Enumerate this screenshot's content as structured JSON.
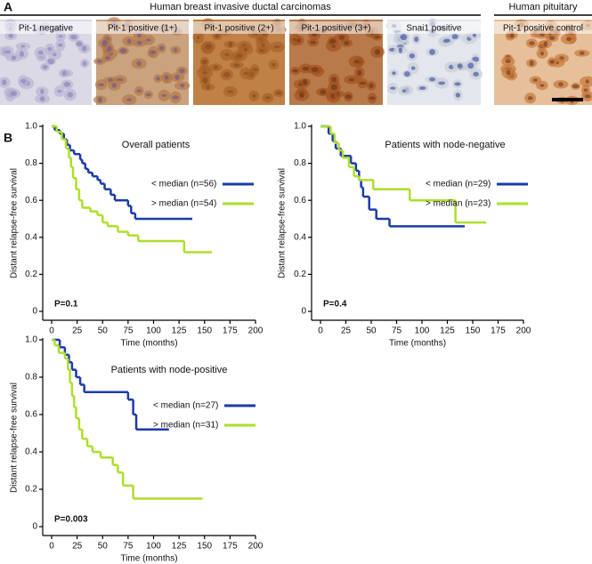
{
  "panel_a": {
    "label": "A",
    "groups": [
      {
        "title": "Human breast invasive ductal carcinomas"
      },
      {
        "title": "Human pituitary"
      }
    ],
    "images": [
      {
        "caption": "Pit-1 negative"
      },
      {
        "caption": "Pit-1 positive (1+)"
      },
      {
        "caption": "Pit-1 positive (2+)"
      },
      {
        "caption": "Pit-1 positive (3+)"
      },
      {
        "caption": "Snai1 positive"
      },
      {
        "caption": "Pit-1 positive control"
      }
    ]
  },
  "panel_b": {
    "label": "B"
  },
  "chart_data": [
    {
      "type": "line",
      "step": true,
      "title": "Overall patients",
      "annotation": "P=0.1",
      "x_label": "Time (months)",
      "y_label": "Distant relapse-free survival",
      "legend": "upper right",
      "xlim": [
        0,
        200
      ],
      "xticks": [
        0,
        25,
        50,
        75,
        100,
        125,
        150,
        175,
        200
      ],
      "ylim": [
        0,
        1
      ],
      "yticks": [
        0,
        0.2,
        0.4,
        0.6,
        0.8,
        {
          "value": 1,
          "label": "1.0"
        }
      ],
      "series": [
        {
          "name": "< median (n=56)",
          "color": "#1c3aa9",
          "x": [
            0,
            3,
            8,
            12,
            15,
            18,
            22,
            28,
            30,
            33,
            36,
            40,
            45,
            48,
            52,
            58,
            62,
            75,
            78,
            82,
            138
          ],
          "values": [
            1,
            0.98,
            0.96,
            0.93,
            0.9,
            0.87,
            0.85,
            0.82,
            0.8,
            0.77,
            0.75,
            0.73,
            0.71,
            0.69,
            0.66,
            0.63,
            0.6,
            0.57,
            0.53,
            0.5,
            0.5
          ]
        },
        {
          "name": "> median (n=54)",
          "color": "#addf2b",
          "x": [
            0,
            5,
            10,
            14,
            17,
            19,
            21,
            24,
            27,
            30,
            38,
            45,
            50,
            55,
            65,
            75,
            85,
            130,
            157
          ],
          "values": [
            1,
            0.97,
            0.93,
            0.88,
            0.83,
            0.78,
            0.72,
            0.66,
            0.6,
            0.56,
            0.54,
            0.52,
            0.48,
            0.46,
            0.43,
            0.41,
            0.38,
            0.32,
            0.32
          ]
        }
      ]
    },
    {
      "type": "line",
      "step": true,
      "title": "Patients with node-negative",
      "annotation": "P=0.4",
      "x_label": "Time (months)",
      "y_label": "Distant relapse-free survival",
      "legend": "upper right",
      "xlim": [
        0,
        200
      ],
      "xticks": [
        0,
        25,
        50,
        75,
        100,
        125,
        150,
        175,
        200
      ],
      "ylim": [
        0,
        1
      ],
      "yticks": [
        0,
        0.2,
        0.4,
        0.6,
        0.8,
        {
          "value": 1,
          "label": "1.0"
        }
      ],
      "series": [
        {
          "name": "< median (n=29)",
          "color": "#1c3aa9",
          "x": [
            0,
            8,
            12,
            15,
            20,
            30,
            35,
            38,
            40,
            42,
            48,
            55,
            68,
            142
          ],
          "values": [
            1,
            0.96,
            0.92,
            0.88,
            0.84,
            0.8,
            0.76,
            0.71,
            0.67,
            0.62,
            0.55,
            0.5,
            0.46,
            0.46
          ]
        },
        {
          "name": "> median (n=23)",
          "color": "#addf2b",
          "x": [
            0,
            10,
            14,
            18,
            22,
            28,
            33,
            38,
            52,
            88,
            133,
            163
          ],
          "values": [
            1,
            0.96,
            0.91,
            0.87,
            0.83,
            0.78,
            0.73,
            0.71,
            0.66,
            0.6,
            0.48,
            0.48
          ]
        }
      ]
    },
    {
      "type": "line",
      "step": true,
      "title": "Patients with node-positive",
      "annotation": "P=0.003",
      "x_label": "Time (months)",
      "y_label": "Distant relapse-free survival",
      "legend": "upper right",
      "xlim": [
        0,
        200
      ],
      "xticks": [
        0,
        25,
        50,
        75,
        100,
        125,
        150,
        175,
        200
      ],
      "ylim": [
        0,
        1
      ],
      "yticks": [
        0,
        0.2,
        0.4,
        0.6,
        0.8,
        {
          "value": 1,
          "label": "1.0"
        }
      ],
      "series": [
        {
          "name": "< median (n=27)",
          "color": "#1c3aa9",
          "x": [
            0,
            8,
            13,
            17,
            20,
            24,
            28,
            32,
            75,
            80,
            83,
            115
          ],
          "values": [
            1,
            0.96,
            0.92,
            0.88,
            0.84,
            0.8,
            0.76,
            0.72,
            0.68,
            0.6,
            0.52,
            0.52
          ]
        },
        {
          "name": "> median (n=31)",
          "color": "#addf2b",
          "x": [
            0,
            3,
            7,
            13,
            16,
            18,
            20,
            22,
            24,
            27,
            30,
            35,
            40,
            48,
            60,
            65,
            70,
            80,
            148
          ],
          "values": [
            1,
            0.97,
            0.93,
            0.9,
            0.84,
            0.77,
            0.7,
            0.64,
            0.58,
            0.52,
            0.47,
            0.43,
            0.4,
            0.37,
            0.33,
            0.29,
            0.22,
            0.15,
            0.15
          ]
        }
      ]
    }
  ]
}
